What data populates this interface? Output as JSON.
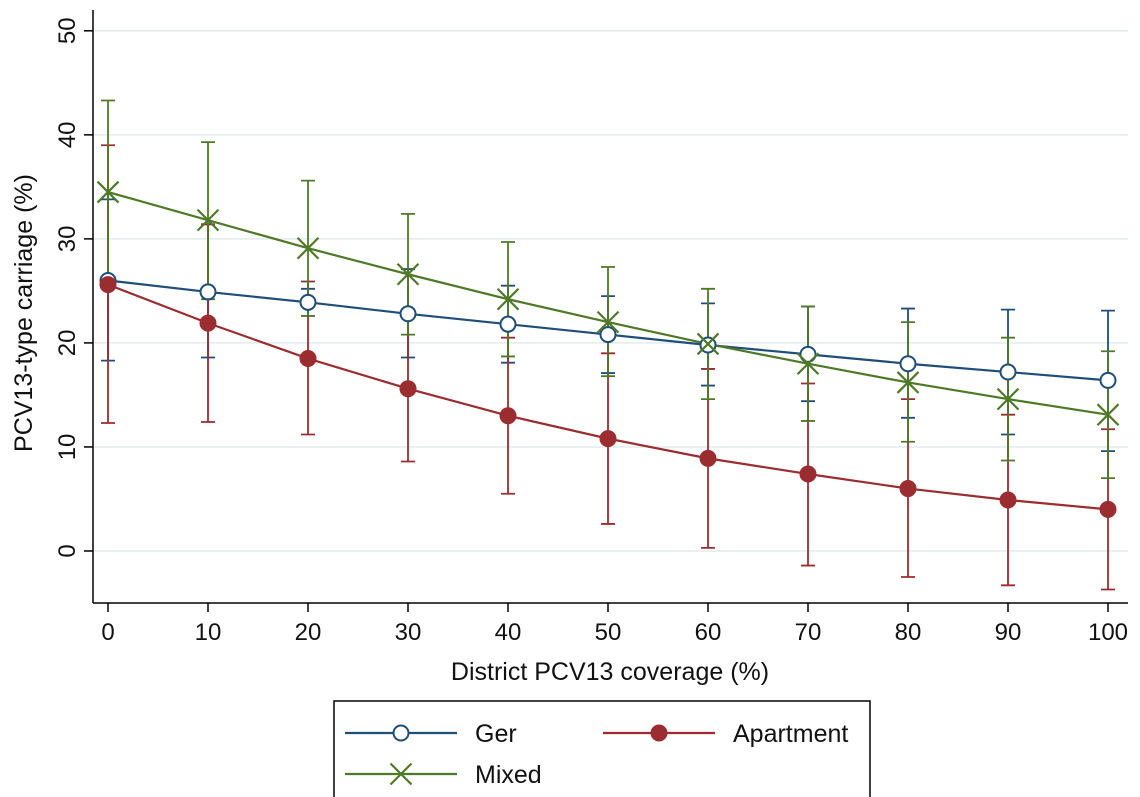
{
  "chart_data": {
    "type": "line",
    "title": "",
    "xlabel": "District PCV13 coverage (%)",
    "ylabel": "PCV13-type carriage (%)",
    "x": [
      0,
      10,
      20,
      30,
      40,
      50,
      60,
      70,
      80,
      90,
      100
    ],
    "xlim": [
      -1.5,
      102
    ],
    "ylim": [
      -5,
      52
    ],
    "xticks": [
      "0",
      "10",
      "20",
      "30",
      "40",
      "50",
      "60",
      "70",
      "80",
      "90",
      "100"
    ],
    "yticks": [
      "0",
      "10",
      "20",
      "30",
      "40",
      "50"
    ],
    "grid": "horizontal",
    "legend_position": "bottom",
    "series": [
      {
        "name": "Ger",
        "color": "#1f4e79",
        "marker": "hollow-circle",
        "values": [
          26.0,
          24.9,
          23.9,
          22.8,
          21.8,
          20.8,
          19.8,
          18.9,
          18.0,
          17.2,
          16.4
        ],
        "lower": [
          18.3,
          18.6,
          22.6,
          18.6,
          18.1,
          17.1,
          15.9,
          14.4,
          12.8,
          11.2,
          9.6
        ],
        "upper": [
          33.8,
          31.4,
          25.2,
          27.1,
          25.5,
          24.5,
          23.8,
          23.5,
          23.3,
          23.2,
          23.1
        ]
      },
      {
        "name": "Apartment",
        "color": "#9b2d30",
        "marker": "filled-circle",
        "values": [
          25.6,
          21.9,
          18.5,
          15.6,
          13.0,
          10.8,
          8.9,
          7.4,
          6.0,
          4.9,
          4.0
        ],
        "lower": [
          12.3,
          12.4,
          11.2,
          8.6,
          5.5,
          2.6,
          0.3,
          -1.4,
          -2.5,
          -3.3,
          -3.7
        ],
        "upper": [
          39.0,
          31.4,
          25.9,
          22.6,
          20.5,
          19.0,
          17.5,
          16.1,
          14.6,
          13.1,
          11.7
        ]
      },
      {
        "name": "Mixed",
        "color": "#4e7a27",
        "marker": "x",
        "values": [
          34.5,
          31.8,
          29.1,
          26.6,
          24.2,
          22.0,
          19.9,
          18.0,
          16.2,
          14.6,
          13.1
        ],
        "lower": [
          25.7,
          24.2,
          22.6,
          20.8,
          18.7,
          16.8,
          14.6,
          12.5,
          10.5,
          8.7,
          7.0
        ],
        "upper": [
          43.3,
          39.3,
          35.6,
          32.4,
          29.7,
          27.3,
          25.2,
          23.5,
          22.0,
          20.5,
          19.2
        ]
      }
    ]
  }
}
